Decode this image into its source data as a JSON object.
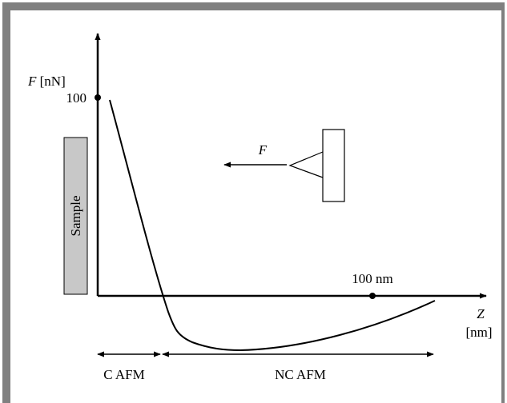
{
  "y_axis": {
    "symbol": "F",
    "unit": "[nN]",
    "tick": "100"
  },
  "sample_label": "Sample",
  "force_label": "F",
  "x_axis": {
    "symbol": "Z",
    "unit": "[nm]",
    "marker": "100 nm"
  },
  "regions": [
    {
      "label": "C AFM"
    },
    {
      "label": "NC AFM"
    }
  ]
}
